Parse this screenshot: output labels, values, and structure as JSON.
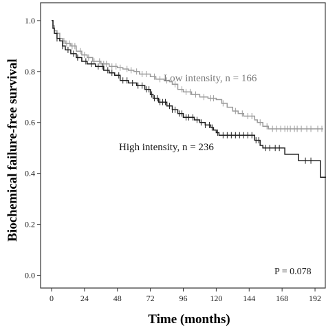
{
  "chart_data": {
    "type": "line",
    "subtype": "kaplan-meier",
    "xlabel": "Time (months)",
    "ylabel": "Biochemical failure-free survival",
    "xlim": [
      -8,
      200
    ],
    "ylim": [
      -0.05,
      1.07
    ],
    "xticks": [
      "0",
      "24",
      "48",
      "72",
      "96",
      "120",
      "144",
      "168",
      "192"
    ],
    "yticks": [
      "0.0",
      "0.2",
      "0.4",
      "0.6",
      "0.8",
      "1.0"
    ],
    "grid": false,
    "p_value": "P = 0.078",
    "series": [
      {
        "name": "Low intensity, n = 166",
        "color": "#9a9a9a",
        "steps": [
          [
            0,
            1.0
          ],
          [
            1,
            0.98
          ],
          [
            2,
            0.96
          ],
          [
            4,
            0.95
          ],
          [
            6,
            0.93
          ],
          [
            8,
            0.92
          ],
          [
            10,
            0.91
          ],
          [
            14,
            0.9
          ],
          [
            18,
            0.88
          ],
          [
            22,
            0.865
          ],
          [
            26,
            0.855
          ],
          [
            30,
            0.84
          ],
          [
            36,
            0.83
          ],
          [
            42,
            0.82
          ],
          [
            48,
            0.815
          ],
          [
            52,
            0.81
          ],
          [
            56,
            0.805
          ],
          [
            60,
            0.8
          ],
          [
            64,
            0.79
          ],
          [
            72,
            0.78
          ],
          [
            76,
            0.77
          ],
          [
            82,
            0.765
          ],
          [
            86,
            0.76
          ],
          [
            88,
            0.75
          ],
          [
            92,
            0.73
          ],
          [
            96,
            0.72
          ],
          [
            102,
            0.71
          ],
          [
            108,
            0.7
          ],
          [
            114,
            0.695
          ],
          [
            120,
            0.69
          ],
          [
            124,
            0.675
          ],
          [
            128,
            0.66
          ],
          [
            132,
            0.645
          ],
          [
            136,
            0.635
          ],
          [
            140,
            0.625
          ],
          [
            148,
            0.61
          ],
          [
            150,
            0.6
          ],
          [
            154,
            0.585
          ],
          [
            158,
            0.575
          ]
        ],
        "end_x": 198,
        "censor_x": [
          4,
          9,
          11,
          13,
          15,
          17,
          21,
          24,
          27,
          31,
          35,
          38,
          40,
          44,
          47,
          50,
          55,
          58,
          62,
          66,
          69,
          75,
          79,
          84,
          90,
          95,
          98,
          101,
          105,
          111,
          116,
          118,
          125,
          134,
          139,
          143,
          146,
          152,
          157,
          161,
          164,
          167,
          170,
          172,
          174,
          177,
          179,
          182,
          186,
          189,
          194,
          197
        ]
      },
      {
        "name": "High intensity, n = 236",
        "color": "#1e1e1e",
        "steps": [
          [
            0,
            1.0
          ],
          [
            1,
            0.97
          ],
          [
            2,
            0.95
          ],
          [
            4,
            0.93
          ],
          [
            6,
            0.92
          ],
          [
            8,
            0.9
          ],
          [
            10,
            0.885
          ],
          [
            14,
            0.87
          ],
          [
            18,
            0.855
          ],
          [
            22,
            0.84
          ],
          [
            26,
            0.83
          ],
          [
            32,
            0.82
          ],
          [
            38,
            0.805
          ],
          [
            42,
            0.795
          ],
          [
            46,
            0.785
          ],
          [
            50,
            0.765
          ],
          [
            56,
            0.755
          ],
          [
            62,
            0.745
          ],
          [
            68,
            0.73
          ],
          [
            72,
            0.71
          ],
          [
            74,
            0.695
          ],
          [
            78,
            0.68
          ],
          [
            84,
            0.665
          ],
          [
            88,
            0.65
          ],
          [
            92,
            0.635
          ],
          [
            96,
            0.62
          ],
          [
            104,
            0.61
          ],
          [
            108,
            0.6
          ],
          [
            112,
            0.59
          ],
          [
            116,
            0.58
          ],
          [
            118,
            0.57
          ],
          [
            120,
            0.56
          ],
          [
            122,
            0.55
          ],
          [
            148,
            0.53
          ],
          [
            152,
            0.51
          ],
          [
            154,
            0.5
          ],
          [
            170,
            0.475
          ],
          [
            180,
            0.45
          ],
          [
            196,
            0.385
          ]
        ],
        "end_x": 200,
        "censor_x": [
          4,
          8,
          12,
          16,
          19,
          25,
          29,
          34,
          37,
          41,
          44,
          49,
          52,
          55,
          59,
          63,
          66,
          69,
          71,
          73,
          75,
          77,
          79,
          81,
          83,
          86,
          88,
          90,
          93,
          95,
          98,
          100,
          103,
          106,
          109,
          112,
          115,
          117,
          121,
          125,
          128,
          131,
          134,
          137,
          140,
          143,
          146,
          149,
          151,
          156,
          159,
          163,
          166,
          185,
          189
        ]
      }
    ]
  }
}
